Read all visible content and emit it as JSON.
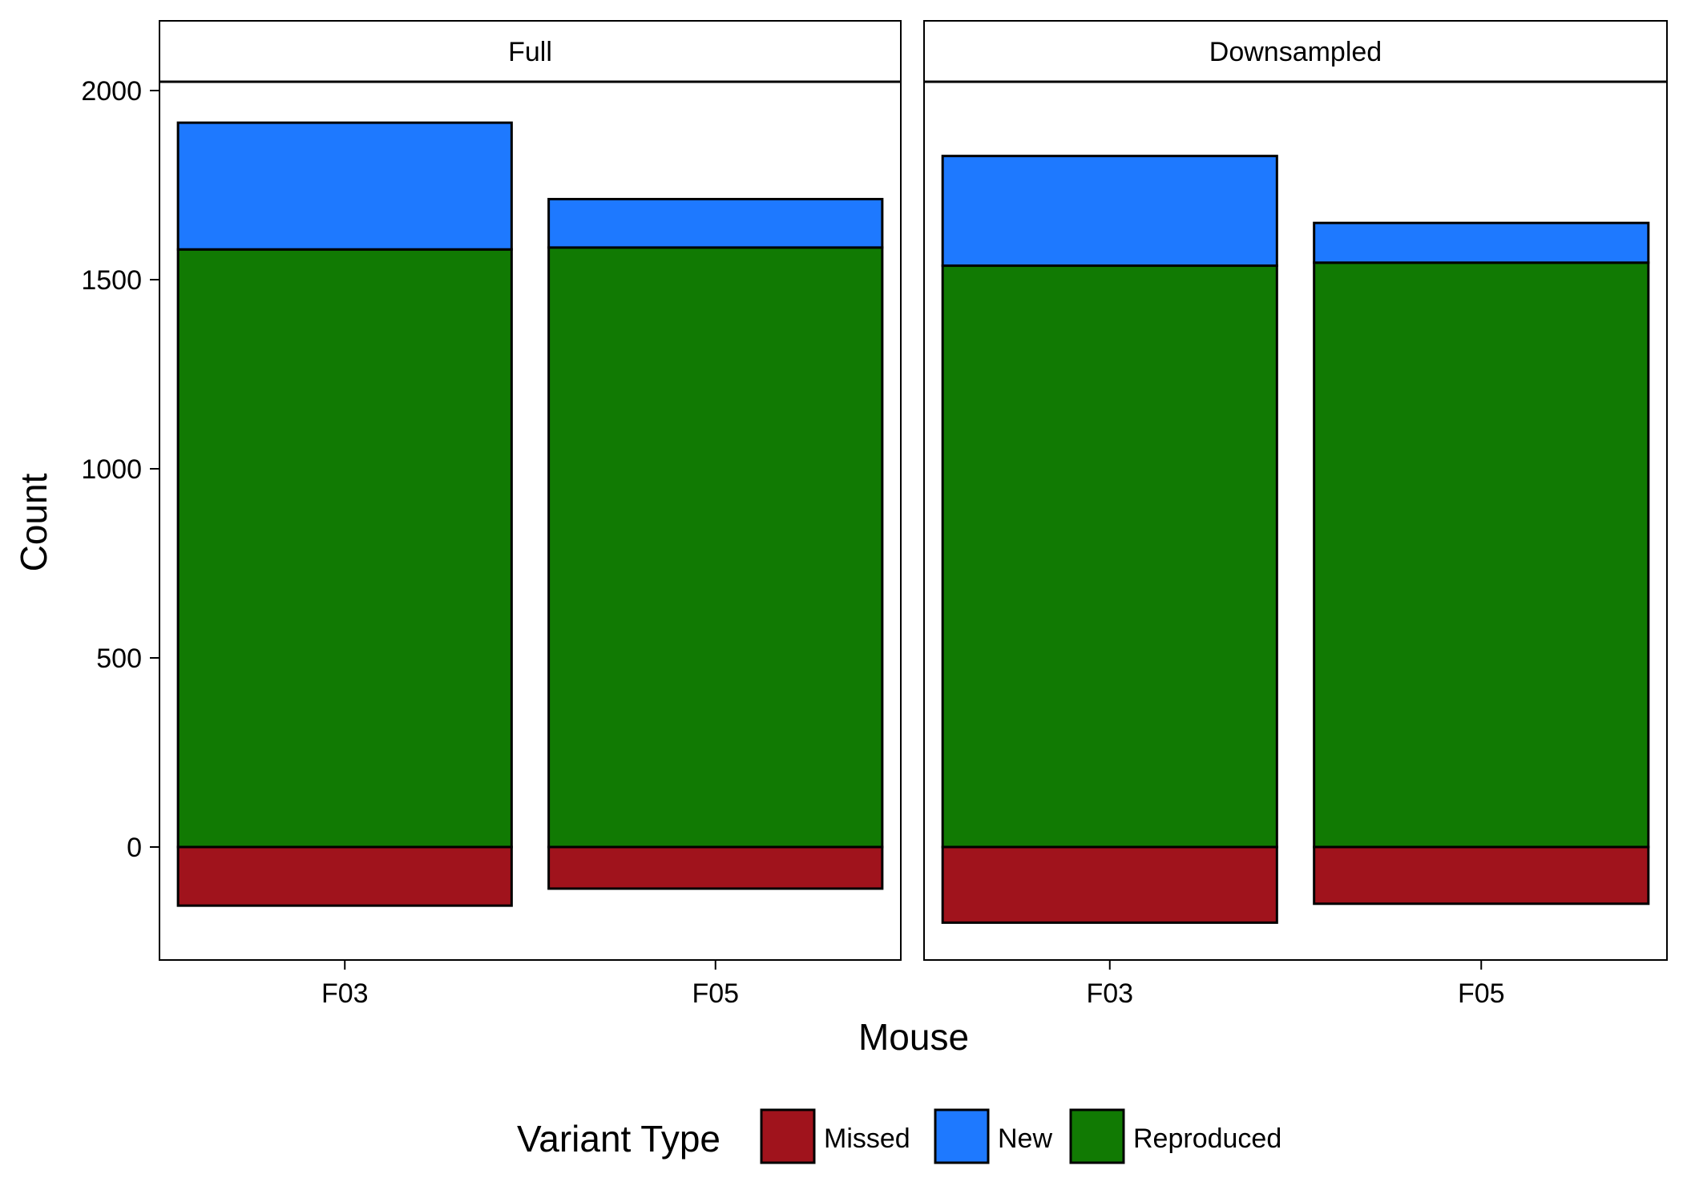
{
  "chart_data": {
    "type": "bar",
    "stacked": true,
    "xlabel": "Mouse",
    "ylabel": "Count",
    "ylim": [
      -300,
      2200
    ],
    "yticks": [
      0,
      500,
      1000,
      1500,
      2000
    ],
    "categories": [
      "F03",
      "F05"
    ],
    "legend": {
      "title": "Variant Type",
      "position": "bottom",
      "entries": [
        {
          "name": "Missed",
          "color": "#A0131C"
        },
        {
          "name": "New",
          "color": "#1E79FF"
        },
        {
          "name": "Reproduced",
          "color": "#117A03"
        }
      ]
    },
    "panels": [
      {
        "label": "Full",
        "series": [
          {
            "name": "Missed",
            "values": [
              -155,
              -110
            ]
          },
          {
            "name": "Reproduced",
            "values": [
              1580,
              1585
            ]
          },
          {
            "name": "New",
            "values": [
              335,
              128
            ]
          }
        ]
      },
      {
        "label": "Downsampled",
        "series": [
          {
            "name": "Missed",
            "values": [
              -200,
              -150
            ]
          },
          {
            "name": "Reproduced",
            "values": [
              1537,
              1545
            ]
          },
          {
            "name": "New",
            "values": [
              290,
              105
            ]
          }
        ]
      }
    ],
    "grid": false
  }
}
